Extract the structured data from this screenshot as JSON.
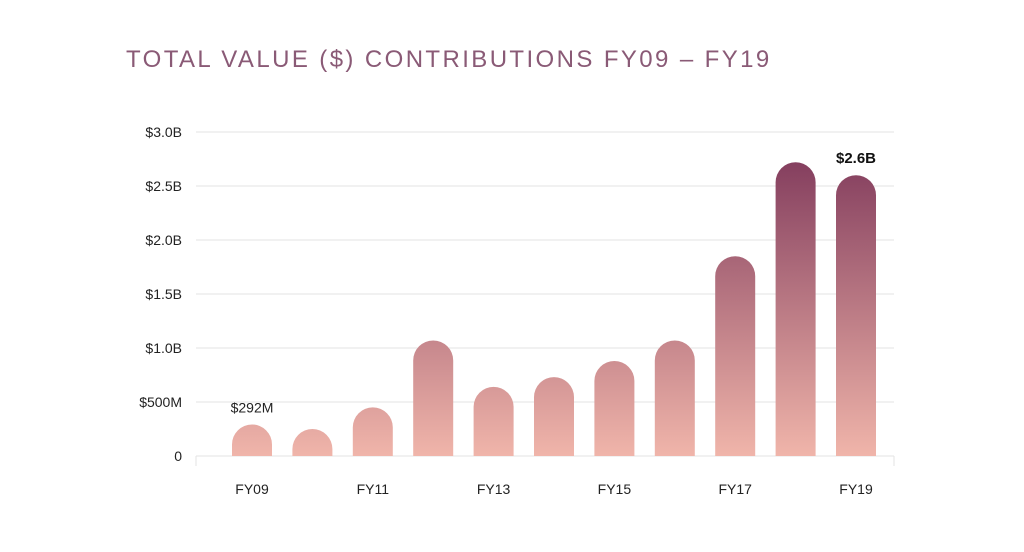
{
  "title": "TOTAL VALUE ($) CONTRIBUTIONS FY09 – FY19",
  "colors": {
    "bar_top": "#7a3357",
    "bar_bottom": "#f0b5aa",
    "grid": "#e3e3e3",
    "title": "#8a5a76"
  },
  "chart_data": {
    "type": "bar",
    "title": "TOTAL VALUE ($) CONTRIBUTIONS FY09 – FY19",
    "xlabel": "",
    "ylabel": "",
    "categories": [
      "FY09",
      "FY10",
      "FY11",
      "FY12",
      "FY13",
      "FY14",
      "FY15",
      "FY16",
      "FY17",
      "FY18",
      "FY19"
    ],
    "x_tick_labels": [
      "FY09",
      "",
      "FY11",
      "",
      "FY13",
      "",
      "FY15",
      "",
      "FY17",
      "",
      "FY19"
    ],
    "values": [
      0.292,
      0.25,
      0.45,
      1.07,
      0.64,
      0.73,
      0.88,
      1.07,
      1.85,
      2.72,
      2.6
    ],
    "value_unit": "billions USD",
    "ylim": [
      0,
      3.0
    ],
    "y_ticks": [
      0,
      0.5,
      1.0,
      1.5,
      2.0,
      2.5,
      3.0
    ],
    "y_tick_labels": [
      "0",
      "$500M",
      "$1.0B",
      "$1.5B",
      "$2.0B",
      "$2.5B",
      "$3.0B"
    ],
    "data_labels": [
      {
        "category": "FY09",
        "text": "$292M",
        "bold": false
      },
      {
        "category": "FY19",
        "text": "$2.6B",
        "bold": true
      }
    ],
    "grid": true,
    "legend": "none"
  }
}
